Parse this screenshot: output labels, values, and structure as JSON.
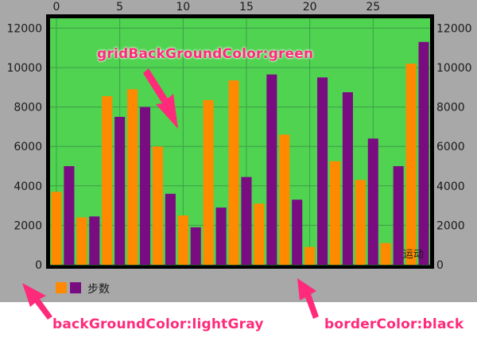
{
  "chart_data": {
    "type": "bar",
    "x_ticks": [
      0,
      5,
      10,
      15,
      20,
      25
    ],
    "x_range": [
      -0.5,
      29.5
    ],
    "y_ticks": [
      0,
      2000,
      4000,
      6000,
      8000,
      10000,
      12000
    ],
    "ylim": [
      0,
      12500
    ],
    "x_unit_label": "运动",
    "grid": true,
    "legend": {
      "placement": "bottom-left",
      "label": "步数"
    },
    "series": [
      {
        "color": "#ff8a00",
        "values": [
          3700,
          2400,
          8550,
          8900,
          6000,
          2500,
          8350,
          9350,
          3100,
          6600,
          900,
          5250,
          4300,
          1100,
          10200
        ]
      },
      {
        "color": "#7a0c82",
        "values": [
          5000,
          2450,
          7500,
          8000,
          3600,
          1900,
          2900,
          4450,
          9650,
          3300,
          9500,
          8750,
          6400,
          5000,
          11300
        ]
      }
    ],
    "colors": {
      "grid_background": "#4fd350",
      "chart_background": "#a8a8a8",
      "border": "#000000",
      "grid_line": "#3f9e4a",
      "axis_text": "#1a1a1a"
    }
  },
  "annotations": [
    {
      "text": "gridBackGroundColor:green"
    },
    {
      "text": "backGroundColor:lightGray"
    },
    {
      "text": "borderColor:black"
    }
  ]
}
